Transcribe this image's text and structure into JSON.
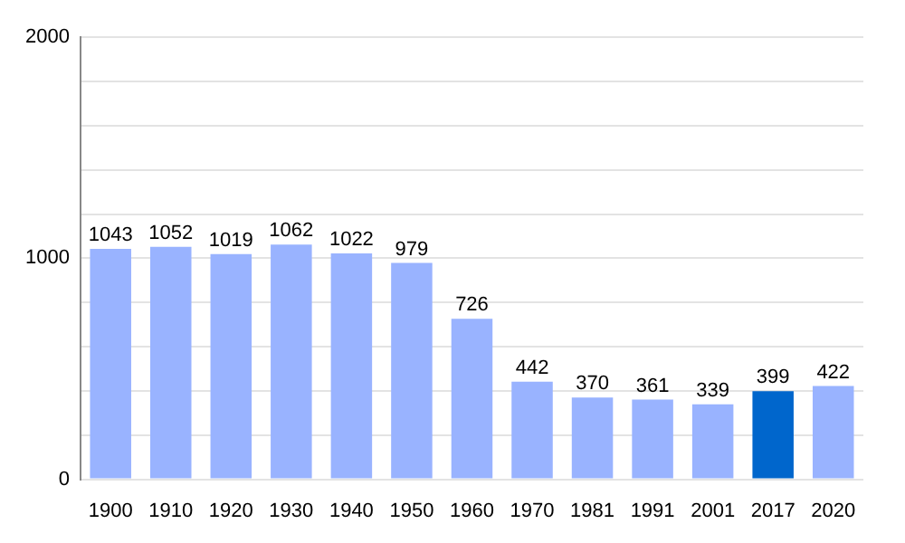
{
  "chart_data": {
    "type": "bar",
    "categories": [
      "1900",
      "1910",
      "1920",
      "1930",
      "1940",
      "1950",
      "1960",
      "1970",
      "1981",
      "1991",
      "2001",
      "2017",
      "2020"
    ],
    "values": [
      1043,
      1052,
      1019,
      1062,
      1022,
      979,
      726,
      442,
      370,
      361,
      339,
      399,
      422
    ],
    "colors": [
      "#99b3ff",
      "#99b3ff",
      "#99b3ff",
      "#99b3ff",
      "#99b3ff",
      "#99b3ff",
      "#99b3ff",
      "#99b3ff",
      "#99b3ff",
      "#99b3ff",
      "#99b3ff",
      "#0066cc",
      "#99b3ff"
    ],
    "ylim": [
      0,
      2000
    ],
    "yticks": [
      0,
      {
        "value": 200,
        "label": null
      },
      {
        "value": 400,
        "label": null
      },
      {
        "value": 600,
        "label": null
      },
      {
        "value": 800,
        "label": null
      },
      1000,
      {
        "value": 1200,
        "label": null
      },
      {
        "value": 1400,
        "label": null
      },
      {
        "value": 1600,
        "label": null
      },
      {
        "value": 1800,
        "label": null
      },
      2000
    ],
    "grid": "y",
    "data_labels": true,
    "legend": false
  }
}
